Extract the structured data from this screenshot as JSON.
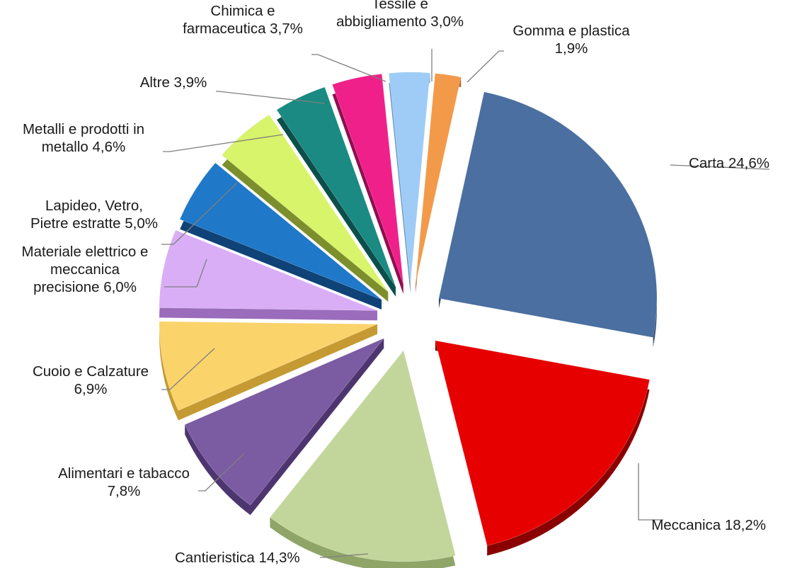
{
  "chart_data": {
    "type": "pie",
    "title": "",
    "style": "3d-exploded",
    "slices": [
      {
        "name": "Carta",
        "value": 24.6,
        "label": [
          "Carta 24,6%"
        ],
        "color": "#4a6fa0",
        "side_color": "#2c4870"
      },
      {
        "name": "Meccanica",
        "value": 18.2,
        "label": [
          "Meccanica 18,2%"
        ],
        "color": "#e60000",
        "side_color": "#8a0000"
      },
      {
        "name": "Cantieristica",
        "value": 14.3,
        "label": [
          "Cantieristica 14,3%"
        ],
        "color": "#c2d69b",
        "side_color": "#8ea567"
      },
      {
        "name": "Alimentari e tabacco",
        "value": 7.8,
        "label": [
          "Alimentari e tabacco",
          "7,8%"
        ],
        "color": "#7b5ba2",
        "side_color": "#4d3670"
      },
      {
        "name": "Cuoio e Calzature",
        "value": 6.9,
        "label": [
          "Cuoio e Calzature",
          "6,9%"
        ],
        "color": "#fbd36b",
        "side_color": "#c59a32"
      },
      {
        "name": "Materiale elettrico e meccanica precisione",
        "value": 6.0,
        "label": [
          "Materiale elettrico e",
          "meccanica",
          "precisione  6,0%"
        ],
        "color": "#d9aef6",
        "side_color": "#9a6cbb"
      },
      {
        "name": "Lapideo, Vetro, Pietre estratte",
        "value": 5.0,
        "label": [
          "Lapideo, Vetro,",
          "Pietre estratte 5,0%"
        ],
        "color": "#1f78c8",
        "side_color": "#0f4377"
      },
      {
        "name": "Metalli e prodotti in metallo",
        "value": 4.6,
        "label": [
          "Metalli e prodotti in",
          "metallo 4,6%"
        ],
        "color": "#d8f46a",
        "side_color": "#7d8f2c"
      },
      {
        "name": "Altre",
        "value": 3.9,
        "label": [
          "Altre 3,9%"
        ],
        "color": "#1a8a82",
        "side_color": "#0c4f4a"
      },
      {
        "name": "Chimica e farmaceutica",
        "value": 3.7,
        "label": [
          "Chimica e",
          "farmaceutica 3,7%"
        ],
        "color": "#f0208a",
        "side_color": "#930c50"
      },
      {
        "name": "Tessile e abbigliamento",
        "value": 3.0,
        "label": [
          "Tessile e",
          "abbigliamento 3,0%"
        ],
        "color": "#9fccf6",
        "side_color": "#5e8fbf"
      },
      {
        "name": "Gomma e plastica",
        "value": 1.9,
        "label": [
          "Gomma e plastica",
          "1,9%"
        ],
        "color": "#f29a4a",
        "side_color": "#b4601a"
      }
    ]
  }
}
